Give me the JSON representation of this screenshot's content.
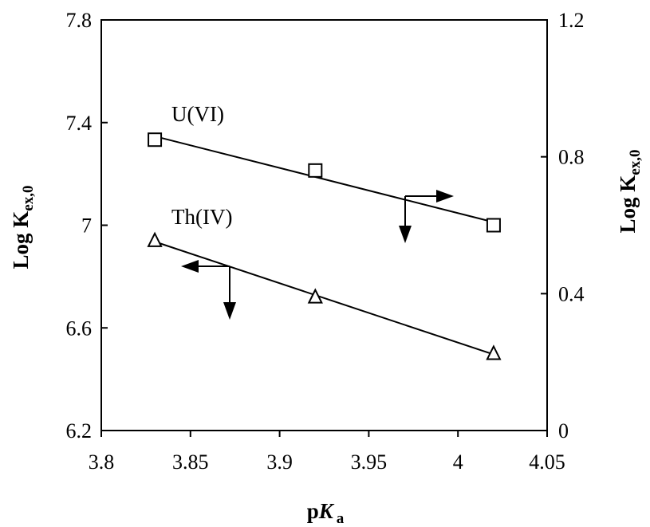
{
  "chart_data": {
    "type": "scatter",
    "x_axis": {
      "label_prefix": "p",
      "label_main": "K",
      "label_sub": "a",
      "range": [
        3.8,
        4.05
      ],
      "ticks": [
        "3.8",
        "3.85",
        "3.9",
        "3.95",
        "4",
        "4.05"
      ]
    },
    "y_axis_left": {
      "label_main": "Log K",
      "label_sub": "ex,0",
      "range": [
        6.2,
        7.8
      ],
      "ticks": [
        "6.2",
        "6.6",
        "7",
        "7.4",
        "7.8"
      ]
    },
    "y_axis_right": {
      "label_main": "Log K",
      "label_sub": "ex,0",
      "range": [
        0,
        1.2
      ],
      "ticks": [
        "0",
        "0.4",
        "0.8",
        "1.2"
      ]
    },
    "grid": false,
    "series": [
      {
        "name": "U(VI)",
        "axis": "right",
        "marker": "square",
        "trendline": true,
        "points": [
          {
            "x": 3.83,
            "y": 0.85
          },
          {
            "x": 3.92,
            "y": 0.76
          },
          {
            "x": 4.02,
            "y": 0.6
          }
        ]
      },
      {
        "name": "Th(IV)",
        "axis": "left",
        "marker": "triangle",
        "trendline": true,
        "points": [
          {
            "x": 3.83,
            "y": 6.94
          },
          {
            "x": 3.92,
            "y": 6.72
          },
          {
            "x": 4.02,
            "y": 6.5
          }
        ]
      }
    ]
  }
}
